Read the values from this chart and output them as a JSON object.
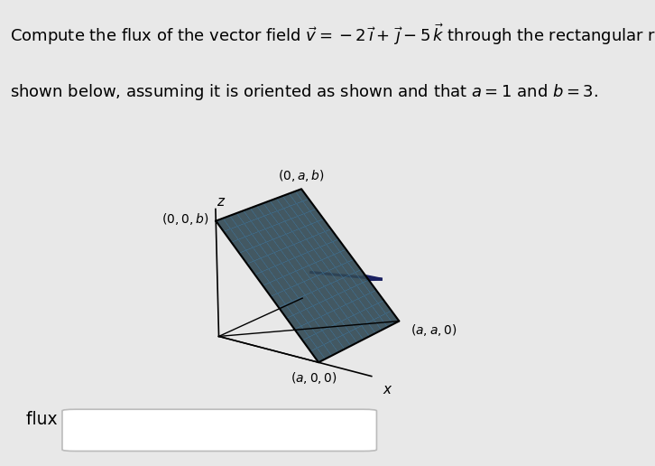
{
  "bg_color": "#e8e8e8",
  "panel_color": "#f5f5f5",
  "a": 1,
  "b": 3,
  "surface_color": "#6a9ab5",
  "surface_alpha": 0.9,
  "grid_color": "#3a6a8a",
  "grid_linewidth": 0.4,
  "arrow_color": "#1a2060",
  "axis_color": "#555555",
  "label_fontsize": 10,
  "text_fontsize": 13,
  "flux_label": "flux = ",
  "flux_box_color": "#ffffff",
  "flux_box_edge": "#bbbbbb",
  "elev": 18,
  "azim": -55,
  "xlim": [
    -0.05,
    1.6
  ],
  "ylim": [
    -0.05,
    1.4
  ],
  "zlim": [
    0,
    3.8
  ],
  "nu": 14,
  "nv": 14
}
